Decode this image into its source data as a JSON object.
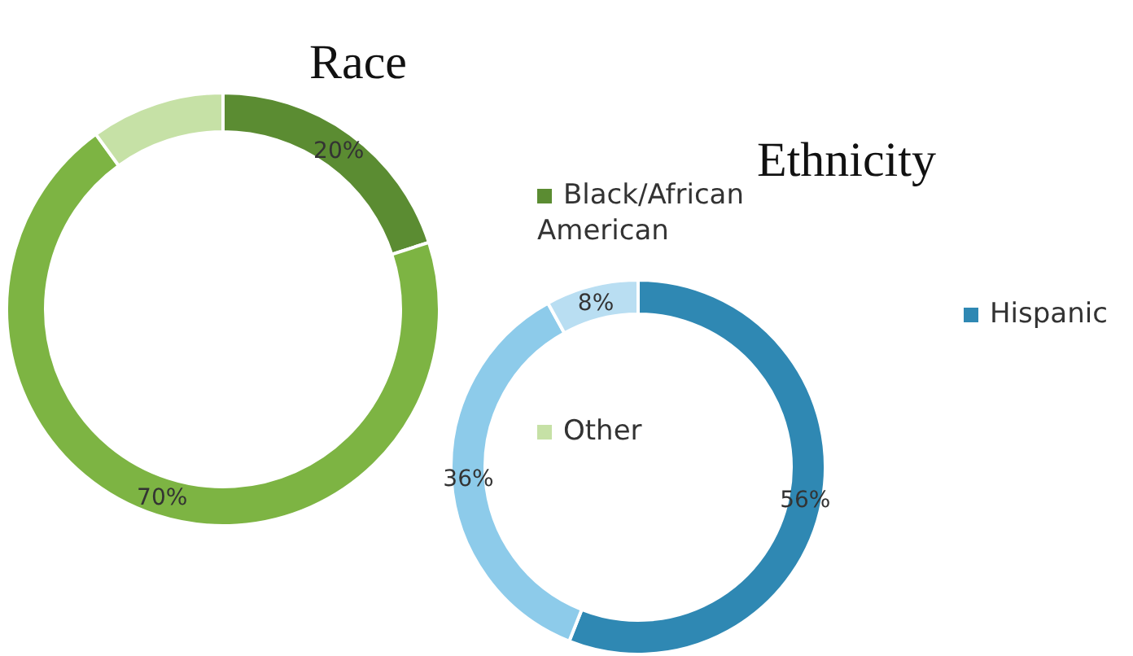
{
  "chart_data": [
    {
      "type": "donut",
      "title": "Race",
      "categories": [
        "Black/African American",
        null,
        "Other"
      ],
      "values": [
        20,
        70,
        10
      ],
      "colors": [
        "#5b8c32",
        "#7db443",
        "#c6e1a6"
      ],
      "value_labels": [
        "20%",
        "70%",
        null
      ],
      "legend": "right"
    },
    {
      "type": "donut",
      "title": "Ethnicity",
      "categories": [
        "Hispanic",
        null,
        null
      ],
      "values": [
        56,
        36,
        8
      ],
      "colors": [
        "#2f88b3",
        "#8dcbea",
        "#b9def2"
      ],
      "value_labels": [
        "56%",
        "36%",
        "8%"
      ],
      "legend": "right"
    }
  ]
}
